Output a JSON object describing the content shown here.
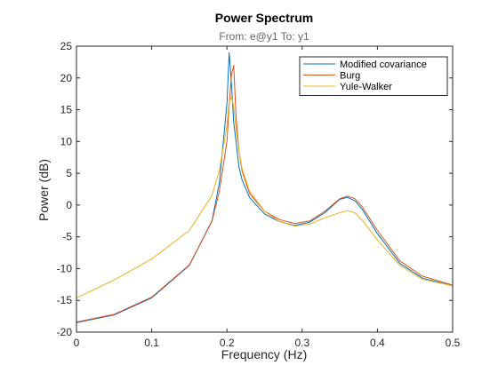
{
  "chart_data": {
    "type": "line",
    "title": "Power Spectrum",
    "subtitle": "From: e@y1  To: y1",
    "xlabel": "Frequency  (Hz)",
    "ylabel": "Power (dB)",
    "xlim": [
      0,
      0.5
    ],
    "ylim": [
      -20,
      25
    ],
    "xticks": [
      0,
      0.1,
      0.2,
      0.3,
      0.4,
      0.5
    ],
    "xtick_labels": [
      "0",
      "0.1",
      "0.2",
      "0.3",
      "0.4",
      "0.5"
    ],
    "yticks": [
      -20,
      -15,
      -10,
      -5,
      0,
      5,
      10,
      15,
      20,
      25
    ],
    "ytick_labels": [
      "-20",
      "-15",
      "-10",
      "-5",
      "0",
      "5",
      "10",
      "15",
      "20",
      "25"
    ],
    "grid": false,
    "legend_position": "top-right",
    "x": [
      0,
      0.05,
      0.1,
      0.15,
      0.18,
      0.19,
      0.2,
      0.203,
      0.206,
      0.209,
      0.212,
      0.216,
      0.22,
      0.23,
      0.25,
      0.27,
      0.29,
      0.31,
      0.33,
      0.35,
      0.36,
      0.37,
      0.38,
      0.4,
      0.43,
      0.46,
      0.5
    ],
    "series": [
      {
        "name": "Modified covariance",
        "color": "#0072BD",
        "values": [
          -18.5,
          -17.3,
          -14.6,
          -9.5,
          -2.5,
          3.5,
          16,
          24,
          19,
          13,
          10,
          6,
          4,
          1.2,
          -1.4,
          -2.6,
          -3.2,
          -2.7,
          -1.2,
          0.9,
          1.2,
          0.7,
          -0.7,
          -4.5,
          -9.2,
          -11.5,
          -12.7
        ]
      },
      {
        "name": "Burg",
        "color": "#D95319",
        "values": [
          -18.4,
          -17.2,
          -14.5,
          -9.4,
          -2.6,
          2.2,
          10,
          15.8,
          20.5,
          22,
          14,
          8.5,
          5.4,
          1.8,
          -1.0,
          -2.3,
          -2.9,
          -2.5,
          -1.0,
          1.0,
          1.4,
          1.0,
          -0.3,
          -4.0,
          -8.8,
          -11.2,
          -12.6
        ]
      },
      {
        "name": "Yule-Walker",
        "color": "#EDB120",
        "values": [
          -14.6,
          -11.8,
          -8.5,
          -4.0,
          1.5,
          5.5,
          12.5,
          16.3,
          17,
          15.5,
          12,
          8.5,
          5.8,
          2.2,
          -1.0,
          -2.6,
          -3.3,
          -3.0,
          -2.0,
          -1.2,
          -0.9,
          -1.2,
          -2.4,
          -5.5,
          -9.5,
          -11.7,
          -12.7
        ]
      }
    ]
  }
}
